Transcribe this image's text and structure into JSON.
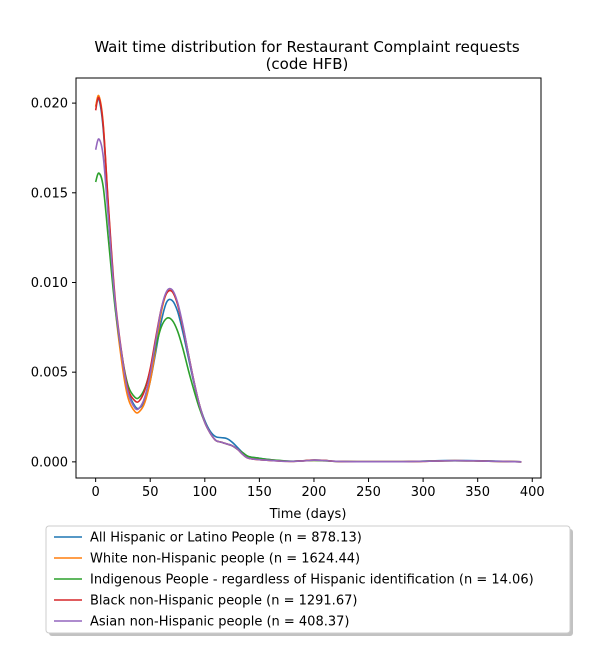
{
  "chart_data": {
    "type": "line",
    "title": "Wait time distribution  for Restaurant Complaint  requests",
    "subtitle": "(code HFB)",
    "xlabel": "Time (days)",
    "ylabel": "",
    "xlim": [
      -18,
      408
    ],
    "ylim": [
      -0.0009,
      0.0214
    ],
    "xticks": [
      0,
      50,
      100,
      150,
      200,
      250,
      300,
      350,
      400
    ],
    "xtick_labels": [
      "0",
      "50",
      "100",
      "150",
      "200",
      "250",
      "300",
      "350",
      "400"
    ],
    "yticks": [
      0.0,
      0.005,
      0.01,
      0.015,
      0.02
    ],
    "ytick_labels": [
      "0.000",
      "0.005",
      "0.010",
      "0.015",
      "0.020"
    ],
    "grid": false,
    "legend_placement": "below",
    "series": [
      {
        "name": "All Hispanic or Latino People (n = 878.13)",
        "color": "#1f77b4",
        "x": [
          0,
          3,
          7,
          12,
          18,
          25,
          30,
          36,
          40,
          45,
          50,
          55,
          60,
          65,
          70,
          75,
          80,
          85,
          90,
          95,
          100,
          105,
          110,
          115,
          120,
          125,
          130,
          135,
          140,
          150,
          160,
          170,
          180,
          190,
          200,
          210,
          220,
          240,
          260,
          280,
          300,
          320,
          340,
          360,
          390
        ],
        "y": [
          0.0198,
          0.0202,
          0.0185,
          0.0138,
          0.0088,
          0.0055,
          0.0039,
          0.0031,
          0.003,
          0.0034,
          0.0045,
          0.0061,
          0.0078,
          0.0089,
          0.009,
          0.0084,
          0.0072,
          0.0058,
          0.0044,
          0.0032,
          0.0023,
          0.0017,
          0.0014,
          0.00135,
          0.0013,
          0.0011,
          0.0008,
          0.0005,
          0.0003,
          0.0002,
          0.00012,
          6e-05,
          3e-05,
          6e-05,
          0.0001,
          8e-05,
          3e-05,
          1e-05,
          1e-05,
          1e-05,
          4e-05,
          7e-05,
          7e-05,
          5e-05,
          0.0
        ]
      },
      {
        "name": "White non-Hispanic people (n = 1624.44)",
        "color": "#ff7f0e",
        "x": [
          0,
          3,
          7,
          12,
          18,
          25,
          30,
          36,
          40,
          45,
          50,
          55,
          60,
          65,
          70,
          75,
          80,
          85,
          90,
          95,
          100,
          105,
          110,
          115,
          120,
          125,
          130,
          135,
          140,
          150,
          160,
          170,
          180,
          190,
          200,
          210,
          220,
          240,
          260,
          280,
          300,
          320,
          340,
          360,
          390
        ],
        "y": [
          0.0198,
          0.0204,
          0.0188,
          0.0138,
          0.0086,
          0.0051,
          0.0035,
          0.0028,
          0.0028,
          0.0033,
          0.0045,
          0.0063,
          0.0083,
          0.0094,
          0.0095,
          0.0088,
          0.0075,
          0.006,
          0.0045,
          0.0032,
          0.0022,
          0.0016,
          0.0012,
          0.0011,
          0.001,
          0.0009,
          0.0007,
          0.0004,
          0.0002,
          0.00012,
          8e-05,
          5e-05,
          3e-05,
          5e-05,
          8e-05,
          7e-05,
          3e-05,
          1e-05,
          1e-05,
          1e-05,
          3e-05,
          6e-05,
          6e-05,
          4e-05,
          0.0
        ]
      },
      {
        "name": "Indigenous People - regardless of Hispanic identification (n = 14.06)",
        "color": "#2ca02c",
        "x": [
          0,
          3,
          7,
          12,
          18,
          25,
          30,
          36,
          40,
          45,
          50,
          55,
          60,
          65,
          70,
          75,
          80,
          85,
          90,
          95,
          100,
          105,
          110,
          115,
          120,
          125,
          130,
          135,
          140,
          150,
          160,
          170,
          180,
          190,
          200,
          210,
          220,
          240,
          260,
          280,
          300,
          320,
          340,
          360,
          390
        ],
        "y": [
          0.0156,
          0.0161,
          0.0153,
          0.0122,
          0.0085,
          0.0056,
          0.0042,
          0.0036,
          0.0036,
          0.0041,
          0.0051,
          0.0064,
          0.0075,
          0.008,
          0.0079,
          0.0073,
          0.0063,
          0.0051,
          0.004,
          0.003,
          0.0022,
          0.0016,
          0.0012,
          0.0011,
          0.001,
          0.0009,
          0.0007,
          0.0005,
          0.0003,
          0.0002,
          0.00012,
          7e-05,
          4e-05,
          6e-05,
          8e-05,
          6e-05,
          3e-05,
          1e-05,
          1e-05,
          1e-05,
          4e-05,
          6e-05,
          6e-05,
          4e-05,
          0.0
        ]
      },
      {
        "name": "Black non-Hispanic people (n = 1291.67)",
        "color": "#d62728",
        "x": [
          0,
          3,
          7,
          12,
          18,
          25,
          30,
          36,
          40,
          45,
          50,
          55,
          60,
          65,
          70,
          75,
          80,
          85,
          90,
          95,
          100,
          105,
          110,
          115,
          120,
          125,
          130,
          135,
          140,
          150,
          160,
          170,
          180,
          190,
          200,
          210,
          220,
          240,
          260,
          280,
          300,
          320,
          340,
          360,
          390
        ],
        "y": [
          0.0196,
          0.0203,
          0.0187,
          0.014,
          0.009,
          0.0056,
          0.004,
          0.0034,
          0.0034,
          0.004,
          0.0052,
          0.0069,
          0.0085,
          0.0094,
          0.0095,
          0.0088,
          0.0075,
          0.006,
          0.0045,
          0.0032,
          0.0022,
          0.0016,
          0.0012,
          0.0011,
          0.001,
          0.0009,
          0.0007,
          0.0004,
          0.0002,
          0.00012,
          8e-05,
          4e-05,
          3e-05,
          6e-05,
          0.0001,
          8e-05,
          3e-05,
          1e-05,
          1e-05,
          1e-05,
          3e-05,
          6e-05,
          6e-05,
          4e-05,
          0.0
        ]
      },
      {
        "name": "Asian non-Hispanic people (n = 408.37)",
        "color": "#9467bd",
        "x": [
          0,
          3,
          7,
          12,
          18,
          25,
          30,
          36,
          40,
          45,
          50,
          55,
          60,
          65,
          70,
          75,
          80,
          85,
          90,
          95,
          100,
          105,
          110,
          115,
          120,
          125,
          130,
          135,
          140,
          150,
          160,
          170,
          180,
          190,
          200,
          210,
          220,
          240,
          260,
          280,
          300,
          320,
          340,
          360,
          390
        ],
        "y": [
          0.0174,
          0.018,
          0.017,
          0.0133,
          0.0088,
          0.0055,
          0.0038,
          0.003,
          0.003,
          0.0036,
          0.0049,
          0.0067,
          0.0085,
          0.0095,
          0.0096,
          0.0089,
          0.0076,
          0.006,
          0.0045,
          0.0032,
          0.0022,
          0.0016,
          0.0012,
          0.0011,
          0.001,
          0.0009,
          0.0007,
          0.0004,
          0.0002,
          0.00012,
          8e-05,
          4e-05,
          3e-05,
          5e-05,
          9e-05,
          7e-05,
          3e-05,
          1e-05,
          1e-05,
          1e-05,
          3e-05,
          6e-05,
          6e-05,
          4e-05,
          0.0
        ]
      }
    ]
  }
}
